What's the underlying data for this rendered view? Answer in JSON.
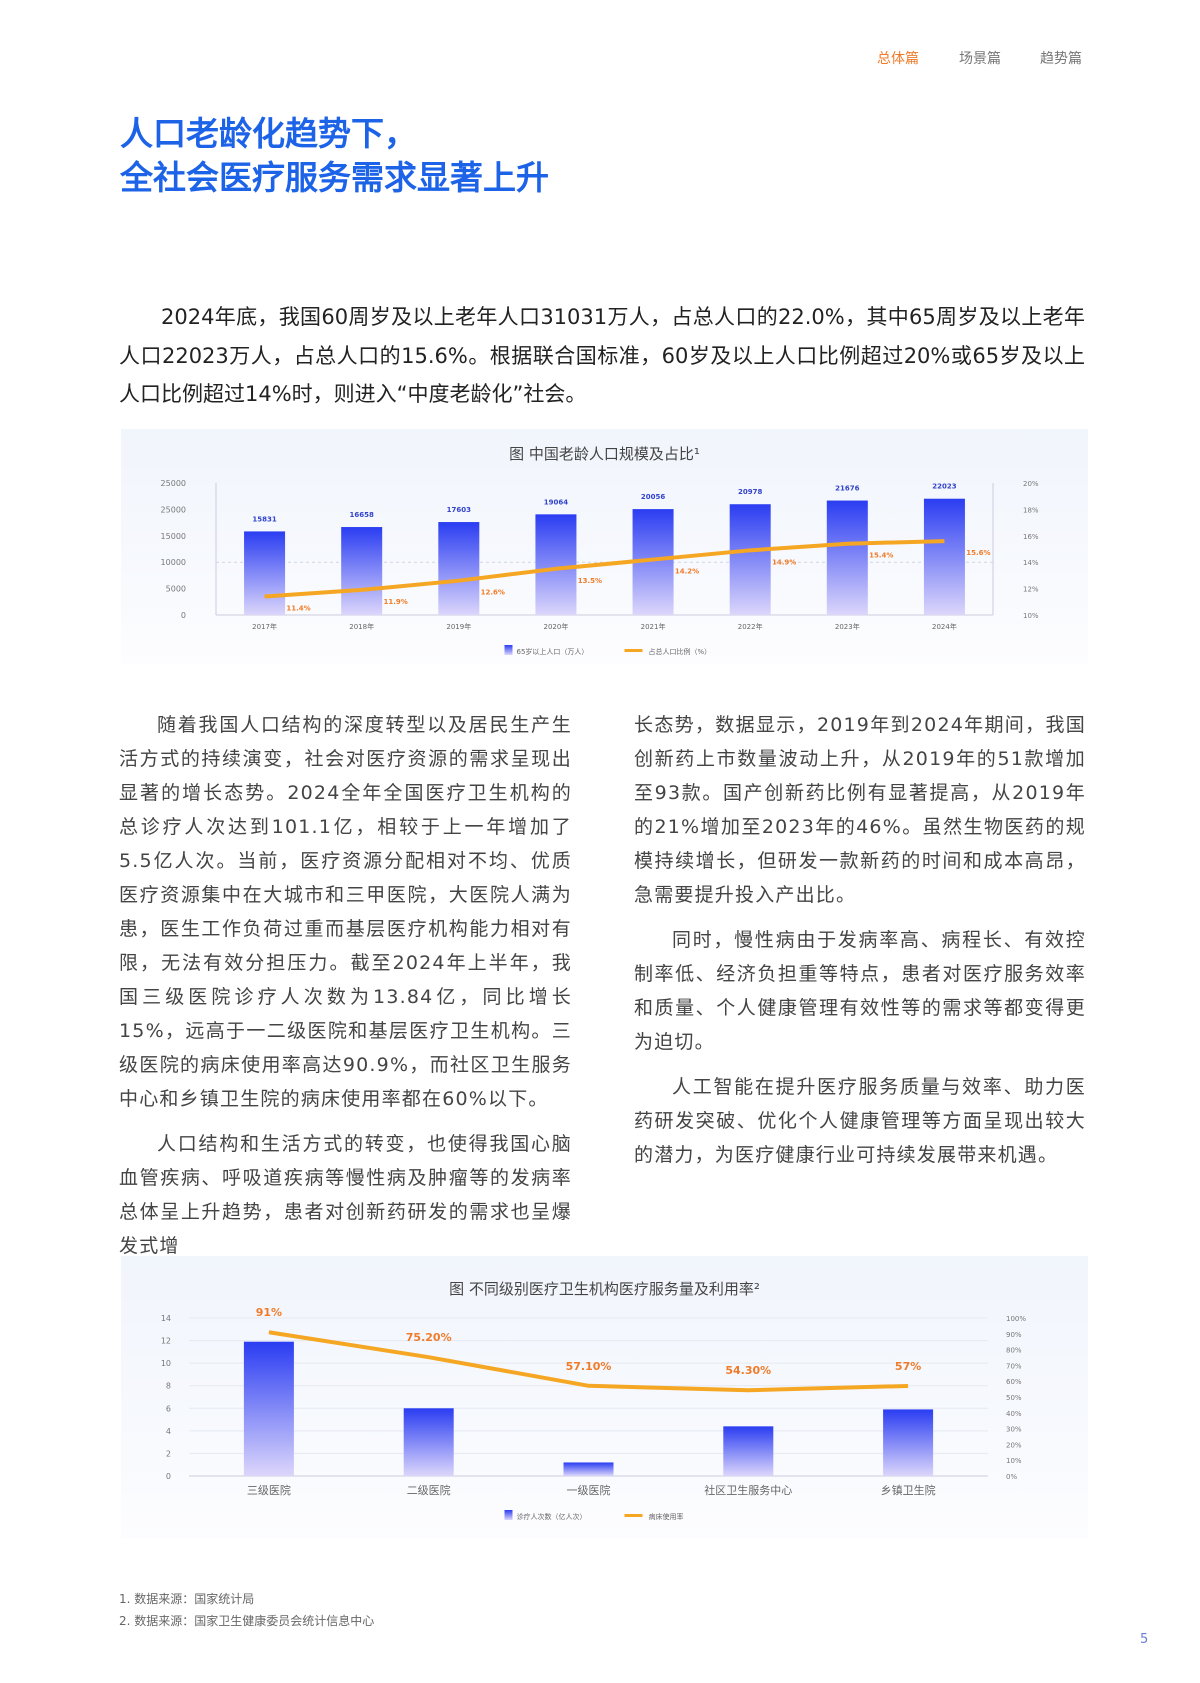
{
  "nav": {
    "items": [
      {
        "label": "总体篇",
        "active": true
      },
      {
        "label": "场景篇",
        "active": false
      },
      {
        "label": "趋势篇",
        "active": false
      }
    ]
  },
  "title": {
    "line1": "人口老龄化趋势下，",
    "line2": "全社会医疗服务需求显著上升"
  },
  "intro": "2024年底，我国60周岁及以上老年人口31031万人，占总人口的22.0%，其中65周岁及以上老年人口22023万人，占总人口的15.6%。根据联合国标准，60岁及以上人口比例超过20%或65岁及以上人口比例超过14%时，则进入“中度老龄化”社会。",
  "body": {
    "left": [
      "随着我国人口结构的深度转型以及居民生产生活方式的持续演变，社会对医疗资源的需求呈现出显著的增长态势。2024全年全国医疗卫生机构的总诊疗人次达到101.1亿，相较于上一年增加了5.5亿人次。当前，医疗资源分配相对不均、优质医疗资源集中在大城市和三甲医院，大医院人满为患，医生工作负荷过重而基层医疗机构能力相对有限，无法有效分担压力。截至2024年上半年，我国三级医院诊疗人次数为13.84亿，同比增长15%，远高于一二级医院和基层医疗卫生机构。三级医院的病床使用率高达90.9%，而社区卫生服务中心和乡镇卫生院的病床使用率都在60%以下。",
      "人口结构和生活方式的转变，也使得我国心脑血管疾病、呼吸道疾病等慢性病及肿瘤等的发病率总体呈上升趋势，患者对创新药研发的需求也呈爆发式增"
    ],
    "right": [
      "长态势，数据显示，2019年到2024年期间，我国创新药上市数量波动上升，从2019年的51款增加至93款。国产创新药比例有显著提高，从2019年的21%增加至2023年的46%。虽然生物医药的规模持续增长，但研发一款新药的时间和成本高昂，急需要提升投入产出比。",
      "同时，慢性病由于发病率高、病程长、有效控制率低、经济负担重等特点，患者对医疗服务效率和质量、个人健康管理有效性等的需求等都变得更为迫切。",
      "人工智能在提升医疗服务质量与效率、助力医药研发突破、优化个人健康管理等方面呈现出较大的潜力，为医疗健康行业可持续发展带来机遇。"
    ]
  },
  "chart_data": [
    {
      "type": "bar+line",
      "title": "图  中国老龄人口规模及占比¹",
      "categories": [
        "2017年",
        "2018年",
        "2019年",
        "2020年",
        "2021年",
        "2022年",
        "2023年",
        "2024年"
      ],
      "series": [
        {
          "name": "65岁以上人口（万人）",
          "type": "bar",
          "axis": "left",
          "values": [
            15831,
            16658,
            17603,
            19064,
            20056,
            20978,
            21676,
            22023
          ],
          "labels": [
            "15831",
            "16658",
            "17603",
            "19064",
            "20056",
            "20978",
            "21676",
            "22023"
          ]
        },
        {
          "name": "占总人口比例（%）",
          "type": "line",
          "axis": "right",
          "values": [
            11.4,
            11.9,
            12.6,
            13.5,
            14.2,
            14.9,
            15.4,
            15.6
          ],
          "labels": [
            "11.4%",
            "11.9%",
            "12.6%",
            "13.5%",
            "14.2%",
            "14.9%",
            "15.4%",
            "15.6%"
          ]
        }
      ],
      "ylim_left": [
        0,
        25000
      ],
      "yticks_left": [
        "0",
        "5000",
        "10000",
        "15000",
        "25000",
        "25000"
      ],
      "ylim_right": [
        10,
        20
      ],
      "yticks_right": [
        "10%",
        "12%",
        "14%",
        "16%",
        "18%",
        "20%"
      ],
      "legend": "bottom",
      "colors": {
        "bar_top": "#2a3df2",
        "bar_bottom": "#dcd6fb",
        "line": "#f5a623",
        "bar_label": "#3344cc",
        "line_label": "#f07c2a"
      }
    },
    {
      "type": "bar+line",
      "title": "图  不同级别医疗卫生机构医疗服务量及利用率²",
      "categories": [
        "三级医院",
        "二级医院",
        "一级医院",
        "社区卫生服务中心",
        "乡镇卫生院"
      ],
      "series": [
        {
          "name": "诊疗人次数（亿人次）",
          "type": "bar",
          "axis": "left",
          "values": [
            11.9,
            6.0,
            1.2,
            4.4,
            5.9
          ]
        },
        {
          "name": "病床使用率",
          "type": "line",
          "axis": "right",
          "values": [
            91,
            75.2,
            57.1,
            54.3,
            57
          ],
          "labels": [
            "91%",
            "75.20%",
            "57.10%",
            "54.30%",
            "57%"
          ]
        }
      ],
      "ylim_left": [
        0,
        14
      ],
      "yticks_left": [
        "0",
        "2",
        "4",
        "6",
        "8",
        "10",
        "12",
        "14"
      ],
      "ylim_right": [
        0,
        100
      ],
      "yticks_right": [
        "0%",
        "10%",
        "20%",
        "30%",
        "40%",
        "50%",
        "60%",
        "70%",
        "80%",
        "90%",
        "100%"
      ],
      "legend": "bottom",
      "grid": true,
      "colors": {
        "bar_top": "#2a3df2",
        "bar_bottom": "#dcd6fb",
        "line": "#f5a623",
        "line_label": "#f07c2a"
      }
    }
  ],
  "footnotes": [
    "1. 数据来源：国家统计局",
    "2. 数据来源：国家卫生健康委员会统计信息中心"
  ],
  "page_number": "5"
}
